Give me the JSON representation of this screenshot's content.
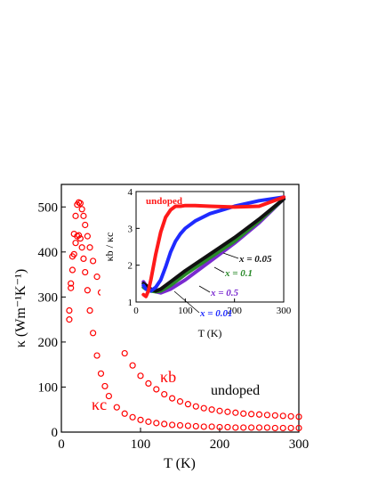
{
  "chart_data": [
    {
      "type": "scatter",
      "xlabel": "T (K)",
      "ylabel": "κ (Wm⁻¹K⁻¹)",
      "xlim": [
        0,
        300
      ],
      "ylim": [
        0,
        550
      ],
      "x_ticks": [
        "0",
        "100",
        "200",
        "300"
      ],
      "y_ticks": [
        "0",
        "100",
        "200",
        "300",
        "400",
        "500"
      ],
      "annotation": "undoped",
      "series": [
        {
          "name": "κb",
          "color": "#ff0000",
          "marker": "open-circle",
          "x": [
            10,
            12,
            14,
            16,
            18,
            20,
            22,
            24,
            26,
            28,
            30,
            33,
            36,
            40,
            45,
            50,
            55,
            60,
            70,
            80,
            90,
            100,
            110,
            120,
            130,
            140,
            150,
            160,
            170,
            180,
            190,
            200,
            210,
            220,
            230,
            240,
            250,
            260,
            270,
            280,
            290,
            300
          ],
          "y": [
            250,
            330,
            390,
            440,
            480,
            505,
            510,
            508,
            495,
            480,
            460,
            435,
            410,
            380,
            345,
            310,
            280,
            255,
            210,
            175,
            148,
            125,
            108,
            95,
            84,
            75,
            68,
            62,
            57,
            53,
            50,
            47,
            45,
            43,
            41,
            40,
            39,
            38,
            37,
            36,
            35,
            34
          ]
        },
        {
          "name": "κc",
          "color": "#ff0000",
          "marker": "open-circle",
          "x": [
            10,
            12,
            14,
            16,
            18,
            20,
            22,
            24,
            26,
            28,
            30,
            33,
            36,
            40,
            45,
            50,
            55,
            60,
            70,
            80,
            90,
            100,
            110,
            120,
            130,
            140,
            150,
            160,
            170,
            180,
            190,
            200,
            210,
            220,
            230,
            240,
            250,
            260,
            270,
            280,
            290,
            300
          ],
          "y": [
            270,
            320,
            360,
            395,
            420,
            435,
            437,
            430,
            410,
            385,
            355,
            315,
            270,
            220,
            170,
            130,
            102,
            80,
            55,
            41,
            33,
            27,
            23,
            20,
            18,
            16,
            15,
            14,
            13,
            12,
            12,
            11,
            11,
            10,
            10,
            10,
            10,
            10,
            9,
            9,
            9,
            9
          ]
        }
      ]
    },
    {
      "type": "line",
      "xlabel": "T (K)",
      "ylabel": "κb / κc",
      "xlim": [
        0,
        300
      ],
      "ylim": [
        1,
        4
      ],
      "x_ticks": [
        "0",
        "100",
        "200",
        "300"
      ],
      "y_ticks": [
        "1",
        "2",
        "3",
        "4"
      ],
      "series": [
        {
          "name": "undoped",
          "color": "#ff1a1a",
          "x": [
            15,
            20,
            25,
            30,
            40,
            50,
            60,
            70,
            80,
            90,
            100,
            120,
            150,
            200,
            250,
            300
          ],
          "y": [
            1.2,
            1.15,
            1.3,
            1.6,
            2.3,
            2.9,
            3.3,
            3.5,
            3.6,
            3.6,
            3.62,
            3.62,
            3.6,
            3.58,
            3.6,
            3.85
          ]
        },
        {
          "name": "x = 0.01",
          "color": "#1f2bff",
          "x": [
            15,
            20,
            30,
            40,
            50,
            60,
            70,
            80,
            90,
            100,
            120,
            150,
            200,
            250,
            300
          ],
          "y": [
            1.45,
            1.35,
            1.3,
            1.4,
            1.6,
            1.95,
            2.35,
            2.65,
            2.85,
            3.0,
            3.2,
            3.4,
            3.6,
            3.75,
            3.85
          ]
        },
        {
          "name": "x = 0.05",
          "color": "#111111",
          "x": [
            15,
            20,
            30,
            40,
            50,
            70,
            100,
            150,
            200,
            250,
            300
          ],
          "y": [
            1.5,
            1.45,
            1.35,
            1.3,
            1.35,
            1.55,
            1.85,
            2.3,
            2.75,
            3.25,
            3.8
          ]
        },
        {
          "name": "x = 0.1",
          "color": "#2a8a2a",
          "x": [
            15,
            20,
            30,
            40,
            50,
            70,
            100,
            150,
            200,
            250,
            300
          ],
          "y": [
            1.4,
            1.35,
            1.3,
            1.28,
            1.3,
            1.45,
            1.75,
            2.2,
            2.65,
            3.2,
            3.8
          ]
        },
        {
          "name": "x = 0.5",
          "color": "#7a2ad0",
          "x": [
            15,
            20,
            30,
            40,
            50,
            70,
            100,
            150,
            200,
            250,
            300
          ],
          "y": [
            1.55,
            1.45,
            1.35,
            1.28,
            1.25,
            1.35,
            1.6,
            2.1,
            2.6,
            3.15,
            3.8
          ]
        }
      ]
    }
  ]
}
